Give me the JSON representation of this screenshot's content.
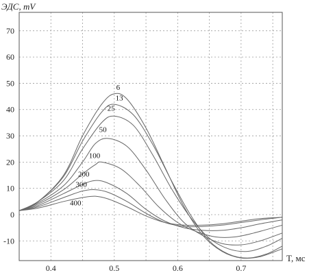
{
  "chart_data": {
    "type": "line",
    "ylabel": "ЭДС, mV",
    "xlabel": "T, мс",
    "xlim": [
      0.35,
      0.765
    ],
    "ylim": [
      -17.5,
      77
    ],
    "xticks": [
      0.4,
      0.5,
      0.6,
      0.7
    ],
    "yticks": [
      -10,
      0,
      10,
      20,
      30,
      40,
      50,
      60,
      70
    ],
    "xtick_labels": [
      "0.4",
      "0.5",
      "0.6",
      "0.7"
    ],
    "ytick_labels": [
      "-10",
      "0",
      "10",
      "20",
      "30",
      "40",
      "50",
      "60",
      "70"
    ],
    "grid": true,
    "legend": "none",
    "line_color": "#666666",
    "series": [
      {
        "name": "6",
        "label_at": [
          0.503,
          47.5
        ],
        "points": [
          [
            0.35,
            1.5
          ],
          [
            0.38,
            5
          ],
          [
            0.42,
            15
          ],
          [
            0.45,
            30
          ],
          [
            0.48,
            42
          ],
          [
            0.5,
            46
          ],
          [
            0.52,
            44
          ],
          [
            0.55,
            33
          ],
          [
            0.58,
            18
          ],
          [
            0.61,
            3
          ],
          [
            0.64,
            -8
          ],
          [
            0.67,
            -14
          ],
          [
            0.7,
            -16.5
          ],
          [
            0.73,
            -16
          ],
          [
            0.765,
            -13
          ]
        ]
      },
      {
        "name": "13",
        "label_at": [
          0.502,
          43.5
        ],
        "points": [
          [
            0.35,
            1.5
          ],
          [
            0.38,
            5
          ],
          [
            0.42,
            14.5
          ],
          [
            0.45,
            28
          ],
          [
            0.48,
            39
          ],
          [
            0.5,
            42
          ],
          [
            0.53,
            38
          ],
          [
            0.56,
            27
          ],
          [
            0.59,
            13
          ],
          [
            0.62,
            0
          ],
          [
            0.65,
            -10
          ],
          [
            0.68,
            -15
          ],
          [
            0.71,
            -16.5
          ],
          [
            0.74,
            -15
          ],
          [
            0.765,
            -12
          ]
        ]
      },
      {
        "name": "25",
        "label_at": [
          0.489,
          39.5
        ],
        "points": [
          [
            0.35,
            1.5
          ],
          [
            0.38,
            5
          ],
          [
            0.42,
            13
          ],
          [
            0.45,
            25
          ],
          [
            0.48,
            35
          ],
          [
            0.5,
            37.5
          ],
          [
            0.53,
            34
          ],
          [
            0.56,
            23
          ],
          [
            0.59,
            10
          ],
          [
            0.62,
            -1
          ],
          [
            0.65,
            -9
          ],
          [
            0.68,
            -13
          ],
          [
            0.71,
            -14
          ],
          [
            0.74,
            -12
          ],
          [
            0.765,
            -9
          ]
        ]
      },
      {
        "name": "50",
        "label_at": [
          0.476,
          31.5
        ],
        "points": [
          [
            0.35,
            1.5
          ],
          [
            0.38,
            4.5
          ],
          [
            0.42,
            11
          ],
          [
            0.45,
            20
          ],
          [
            0.47,
            27
          ],
          [
            0.49,
            29
          ],
          [
            0.52,
            26
          ],
          [
            0.55,
            17
          ],
          [
            0.58,
            6
          ],
          [
            0.61,
            -3
          ],
          [
            0.64,
            -8
          ],
          [
            0.67,
            -11
          ],
          [
            0.7,
            -11.5
          ],
          [
            0.73,
            -10
          ],
          [
            0.765,
            -7
          ]
        ]
      },
      {
        "name": "100",
        "label_at": [
          0.46,
          21.5
        ],
        "points": [
          [
            0.35,
            1.5
          ],
          [
            0.38,
            4
          ],
          [
            0.42,
            9.5
          ],
          [
            0.45,
            15.5
          ],
          [
            0.47,
            19
          ],
          [
            0.48,
            20
          ],
          [
            0.51,
            17.5
          ],
          [
            0.54,
            11
          ],
          [
            0.57,
            3
          ],
          [
            0.6,
            -3
          ],
          [
            0.63,
            -6.5
          ],
          [
            0.66,
            -8.5
          ],
          [
            0.69,
            -8.5
          ],
          [
            0.72,
            -7
          ],
          [
            0.765,
            -4
          ]
        ]
      },
      {
        "name": "200",
        "label_at": [
          0.443,
          14.5
        ],
        "points": [
          [
            0.35,
            1.5
          ],
          [
            0.38,
            3.5
          ],
          [
            0.42,
            8
          ],
          [
            0.45,
            11.5
          ],
          [
            0.47,
            13
          ],
          [
            0.49,
            12
          ],
          [
            0.52,
            8
          ],
          [
            0.55,
            2
          ],
          [
            0.58,
            -2.5
          ],
          [
            0.61,
            -5
          ],
          [
            0.64,
            -6
          ],
          [
            0.67,
            -6
          ],
          [
            0.7,
            -5
          ],
          [
            0.73,
            -3.5
          ],
          [
            0.765,
            -2
          ]
        ]
      },
      {
        "name": "300",
        "label_at": [
          0.439,
          10.5
        ],
        "points": [
          [
            0.35,
            1.5
          ],
          [
            0.38,
            3
          ],
          [
            0.42,
            6.5
          ],
          [
            0.45,
            9
          ],
          [
            0.47,
            9.5
          ],
          [
            0.49,
            8.5
          ],
          [
            0.52,
            5
          ],
          [
            0.55,
            0.5
          ],
          [
            0.58,
            -3
          ],
          [
            0.61,
            -4.5
          ],
          [
            0.64,
            -4.5
          ],
          [
            0.67,
            -4
          ],
          [
            0.7,
            -3
          ],
          [
            0.73,
            -2
          ],
          [
            0.765,
            -1
          ]
        ]
      },
      {
        "name": "400",
        "label_at": [
          0.43,
          3.5
        ],
        "points": [
          [
            0.35,
            1.5
          ],
          [
            0.38,
            2.5
          ],
          [
            0.42,
            5
          ],
          [
            0.45,
            6.5
          ],
          [
            0.47,
            7
          ],
          [
            0.49,
            6
          ],
          [
            0.52,
            3
          ],
          [
            0.55,
            -0.5
          ],
          [
            0.58,
            -3
          ],
          [
            0.61,
            -4
          ],
          [
            0.64,
            -4
          ],
          [
            0.67,
            -3.5
          ],
          [
            0.7,
            -2.5
          ],
          [
            0.73,
            -1.5
          ],
          [
            0.765,
            -1
          ]
        ]
      }
    ]
  }
}
